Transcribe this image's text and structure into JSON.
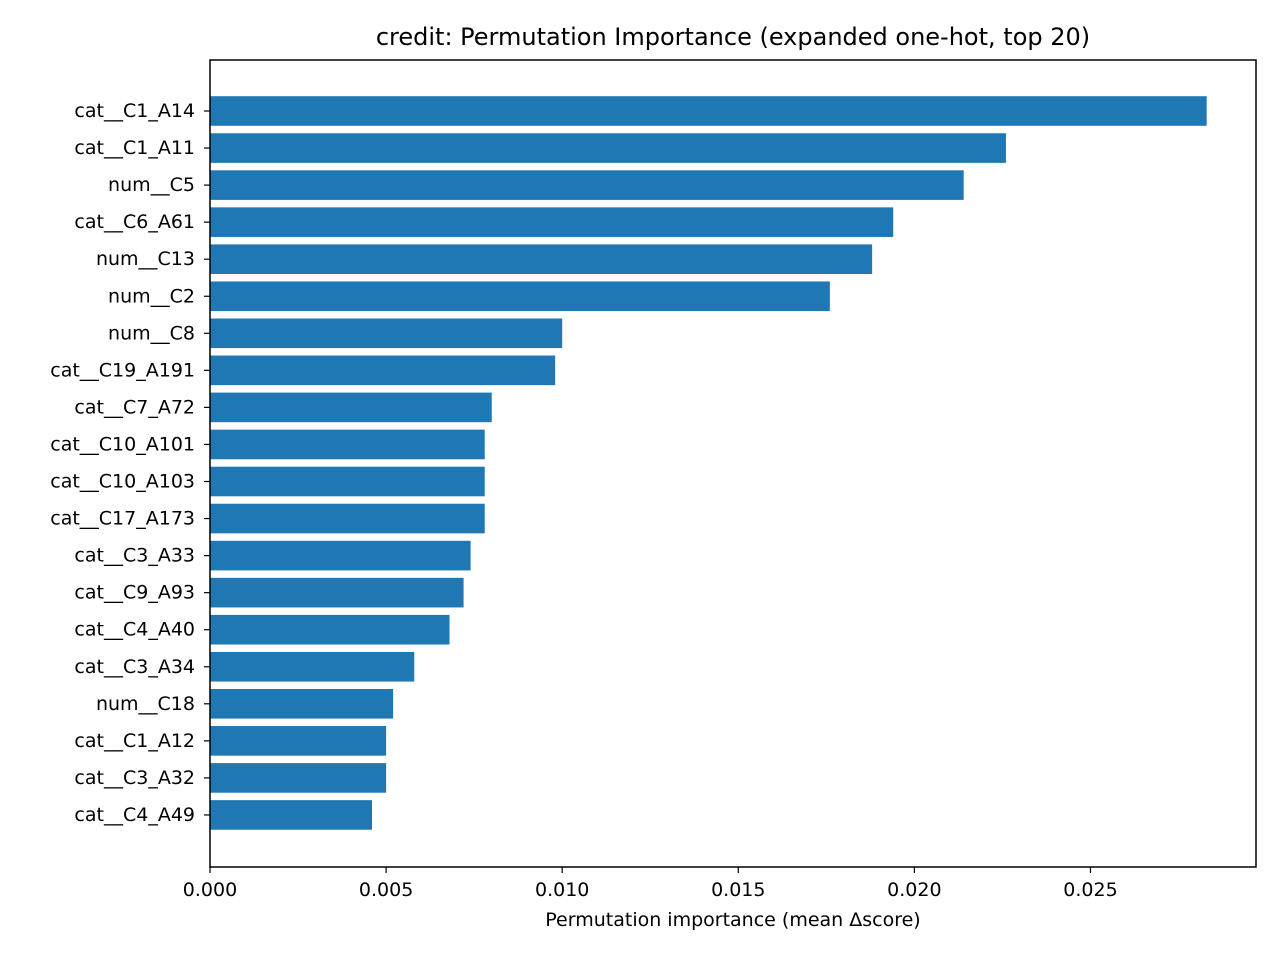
{
  "chart_data": {
    "type": "bar",
    "orientation": "horizontal",
    "title": "credit: Permutation Importance (expanded one-hot, top 20)",
    "xlabel": "Permutation importance (mean Δscore)",
    "ylabel": "",
    "xlim": [
      0,
      0.0297
    ],
    "xticks": [
      "0.000",
      "0.005",
      "0.010",
      "0.015",
      "0.020",
      "0.025"
    ],
    "grid": false,
    "legend": "none",
    "bar_color": "#1f77b4",
    "categories": [
      "cat__C1_A14",
      "cat__C1_A11",
      "num__C5",
      "cat__C6_A61",
      "num__C13",
      "num__C2",
      "num__C8",
      "cat__C19_A191",
      "cat__C7_A72",
      "cat__C10_A101",
      "cat__C10_A103",
      "cat__C17_A173",
      "cat__C3_A33",
      "cat__C9_A93",
      "cat__C4_A40",
      "cat__C3_A34",
      "num__C18",
      "cat__C1_A12",
      "cat__C3_A32",
      "cat__C4_A49"
    ],
    "values": [
      0.0283,
      0.0226,
      0.0214,
      0.0194,
      0.0188,
      0.0176,
      0.01,
      0.0098,
      0.008,
      0.0078,
      0.0078,
      0.0078,
      0.0074,
      0.0072,
      0.0068,
      0.0058,
      0.0052,
      0.005,
      0.005,
      0.0046
    ]
  }
}
